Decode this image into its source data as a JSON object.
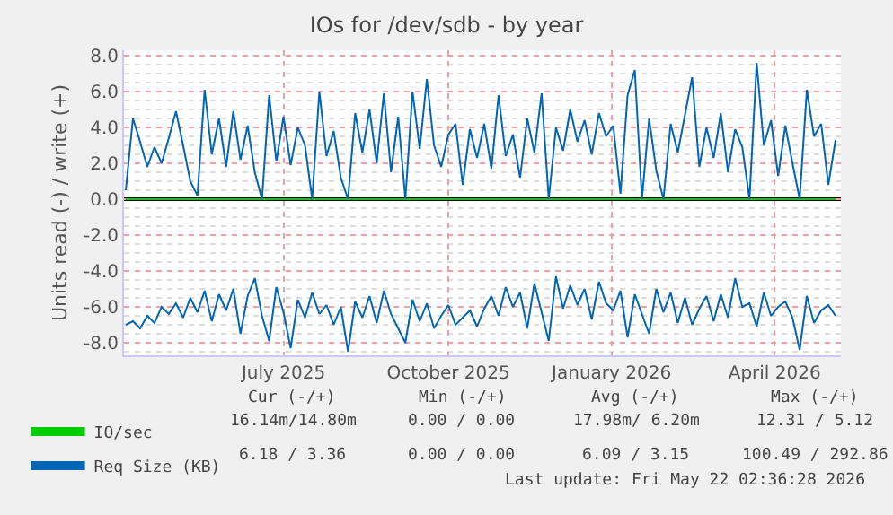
{
  "chart_data": {
    "type": "line",
    "title": "IOs for /dev/sdb - by year",
    "ylabel": "Units read (-) / write (+)",
    "x": [
      "2025-04-18",
      "2025-04-22",
      "2025-04-26",
      "2025-04-30",
      "2025-05-04",
      "2025-05-08",
      "2025-05-12",
      "2025-05-16",
      "2025-05-20",
      "2025-05-24",
      "2025-05-28",
      "2025-06-01",
      "2025-06-05",
      "2025-06-09",
      "2025-06-13",
      "2025-06-17",
      "2025-06-21",
      "2025-06-25",
      "2025-06-29",
      "2025-07-03",
      "2025-07-07",
      "2025-07-11",
      "2025-07-15",
      "2025-07-19",
      "2025-07-23",
      "2025-07-27",
      "2025-07-31",
      "2025-08-04",
      "2025-08-08",
      "2025-08-12",
      "2025-08-16",
      "2025-08-20",
      "2025-08-24",
      "2025-08-28",
      "2025-09-01",
      "2025-09-05",
      "2025-09-09",
      "2025-09-13",
      "2025-09-17",
      "2025-09-21",
      "2025-09-25",
      "2025-09-29",
      "2025-10-03",
      "2025-10-07",
      "2025-10-11",
      "2025-10-15",
      "2025-10-19",
      "2025-10-23",
      "2025-10-27",
      "2025-10-31",
      "2025-11-04",
      "2025-11-08",
      "2025-11-12",
      "2025-11-16",
      "2025-11-20",
      "2025-11-24",
      "2025-11-28",
      "2025-12-02",
      "2025-12-06",
      "2025-12-10",
      "2025-12-14",
      "2025-12-18",
      "2025-12-22",
      "2025-12-26",
      "2025-12-30",
      "2026-01-03",
      "2026-01-07",
      "2026-01-11",
      "2026-01-15",
      "2026-01-19",
      "2026-01-23",
      "2026-01-27",
      "2026-01-31",
      "2026-02-04",
      "2026-02-08",
      "2026-02-12",
      "2026-02-16",
      "2026-02-20",
      "2026-02-24",
      "2026-02-28",
      "2026-03-04",
      "2026-03-08",
      "2026-03-12",
      "2026-03-16",
      "2026-03-20",
      "2026-03-24",
      "2026-03-28",
      "2026-04-01",
      "2026-04-05",
      "2026-04-09",
      "2026-04-13",
      "2026-04-17",
      "2026-04-21",
      "2026-04-25",
      "2026-04-29",
      "2026-05-03",
      "2026-05-07",
      "2026-05-11",
      "2026-05-15",
      "2026-05-19"
    ],
    "series": [
      {
        "name": "IO/sec",
        "color": "#00cc00",
        "values": [
          0,
          0,
          0,
          0,
          0,
          0,
          0,
          0,
          0,
          0,
          0,
          0,
          0,
          0,
          0,
          0,
          0,
          0,
          0,
          0,
          0,
          0,
          0,
          0,
          0,
          0,
          0,
          0,
          0,
          0,
          0,
          0,
          0,
          0,
          0,
          0,
          0,
          0,
          0,
          0,
          0,
          0,
          0,
          0,
          0,
          0,
          0,
          0,
          0,
          0,
          0,
          0,
          0,
          0,
          0,
          0,
          0,
          0,
          0,
          0,
          0,
          0,
          0,
          0,
          0,
          0,
          0,
          0,
          0,
          0,
          0,
          0,
          0,
          0,
          0,
          0,
          0,
          0,
          0,
          0,
          0,
          0,
          0,
          0,
          0,
          0,
          0,
          0,
          0,
          0,
          0,
          0,
          0,
          0,
          0,
          0,
          0,
          0,
          0,
          0
        ]
      },
      {
        "name": "Req Size (KB)",
        "color": "#0066b3",
        "values": [
          0.5,
          4.5,
          3.2,
          1.8,
          2.9,
          2.0,
          3.4,
          4.9,
          3.0,
          1.0,
          0.2,
          6.1,
          2.5,
          4.5,
          1.8,
          4.9,
          2.2,
          4.1,
          1.5,
          0.0,
          5.8,
          2.1,
          4.6,
          1.9,
          4.0,
          3.0,
          0.0,
          6.0,
          2.4,
          3.8,
          1.2,
          0.0,
          4.8,
          2.6,
          5.0,
          2.0,
          5.9,
          1.5,
          4.6,
          0.0,
          6.0,
          2.8,
          6.7,
          3.0,
          1.8,
          3.6,
          4.2,
          0.8,
          3.9,
          2.3,
          4.2,
          1.7,
          5.8,
          2.4,
          3.6,
          1.2,
          4.5,
          2.6,
          5.9,
          0.0,
          4.0,
          2.7,
          5.0,
          3.2,
          4.4,
          2.5,
          4.8,
          3.5,
          4.1,
          0.3,
          5.8,
          7.2,
          0.0,
          4.5,
          1.6,
          0.0,
          4.2,
          2.6,
          4.7,
          6.8,
          1.8,
          4.0,
          2.3,
          4.8,
          1.5,
          3.9,
          2.9,
          0.0,
          7.6,
          3.0,
          4.4,
          1.3,
          4.1,
          2.0,
          0.0,
          6.1,
          3.5,
          4.2,
          0.8,
          3.3
        ]
      },
      {
        "color": "#0066b3",
        "values": [
          -7.0,
          -6.8,
          -7.2,
          -6.5,
          -6.9,
          -6.0,
          -6.4,
          -5.8,
          -6.6,
          -5.5,
          -6.3,
          -5.1,
          -6.8,
          -5.3,
          -6.2,
          -5.0,
          -7.5,
          -5.4,
          -4.4,
          -6.5,
          -7.9,
          -4.9,
          -6.3,
          -8.3,
          -5.6,
          -6.6,
          -5.2,
          -6.4,
          -5.9,
          -7.0,
          -6.0,
          -8.5,
          -5.7,
          -6.6,
          -5.4,
          -6.9,
          -5.1,
          -6.4,
          -7.2,
          -8.0,
          -5.6,
          -6.8,
          -5.8,
          -7.2,
          -6.5,
          -5.9,
          -7.0,
          -6.6,
          -6.2,
          -7.1,
          -6.1,
          -5.4,
          -6.5,
          -4.9,
          -6.0,
          -5.2,
          -7.2,
          -4.7,
          -6.3,
          -7.9,
          -4.3,
          -6.1,
          -4.8,
          -5.9,
          -5.0,
          -6.7,
          -4.6,
          -5.8,
          -6.2,
          -5.1,
          -7.7,
          -5.3,
          -6.4,
          -7.5,
          -5.0,
          -6.3,
          -5.2,
          -6.9,
          -5.5,
          -7.0,
          -6.1,
          -5.4,
          -6.8,
          -5.3,
          -6.6,
          -4.4,
          -6.0,
          -5.8,
          -7.1,
          -5.2,
          -6.5,
          -6.0,
          -5.7,
          -6.6,
          -8.4,
          -5.4,
          -6.9,
          -6.2,
          -5.9,
          -6.5
        ]
      }
    ],
    "xlim": [
      "2025-04-17",
      "2026-05-22"
    ],
    "xticks": [
      {
        "value": "2025-07-15",
        "label": "July 2025"
      },
      {
        "value": "2025-10-15",
        "label": "October 2025"
      },
      {
        "value": "2026-01-14",
        "label": "January 2026"
      },
      {
        "value": "2026-04-15",
        "label": "April 2026"
      }
    ],
    "ylim": [
      -8.7,
      8.3
    ],
    "yticks": [
      {
        "value": -8,
        "label": "-8.0"
      },
      {
        "value": -6,
        "label": "-6.0"
      },
      {
        "value": -4,
        "label": "-4.0"
      },
      {
        "value": -2,
        "label": "-2.0"
      },
      {
        "value": 0,
        "label": "0.0"
      },
      {
        "value": 2,
        "label": "2.0"
      },
      {
        "value": 4,
        "label": "4.0"
      },
      {
        "value": 6,
        "label": "6.0"
      },
      {
        "value": 8,
        "label": "8.0"
      }
    ],
    "ref_lines": [
      {
        "axis": "y",
        "value": 0,
        "color": "#000000"
      }
    ],
    "grid": true,
    "legend": "bottom left",
    "marker": "none",
    "line_style": "solid",
    "annotations": [
      "Cur (-/+)",
      "Min (-/+)",
      "Avg (-/+)",
      "Max (-/+)",
      "16.14m/14.80m",
      "0.00 / 0.00",
      "17.98m/ 6.20m",
      "12.31 / 5.12",
      "6.18 / 3.36",
      "0.00 / 0.00",
      "6.09 / 3.15",
      "100.49 / 292.86",
      "Last update: Fri May 22 02:36:28 2026"
    ]
  }
}
